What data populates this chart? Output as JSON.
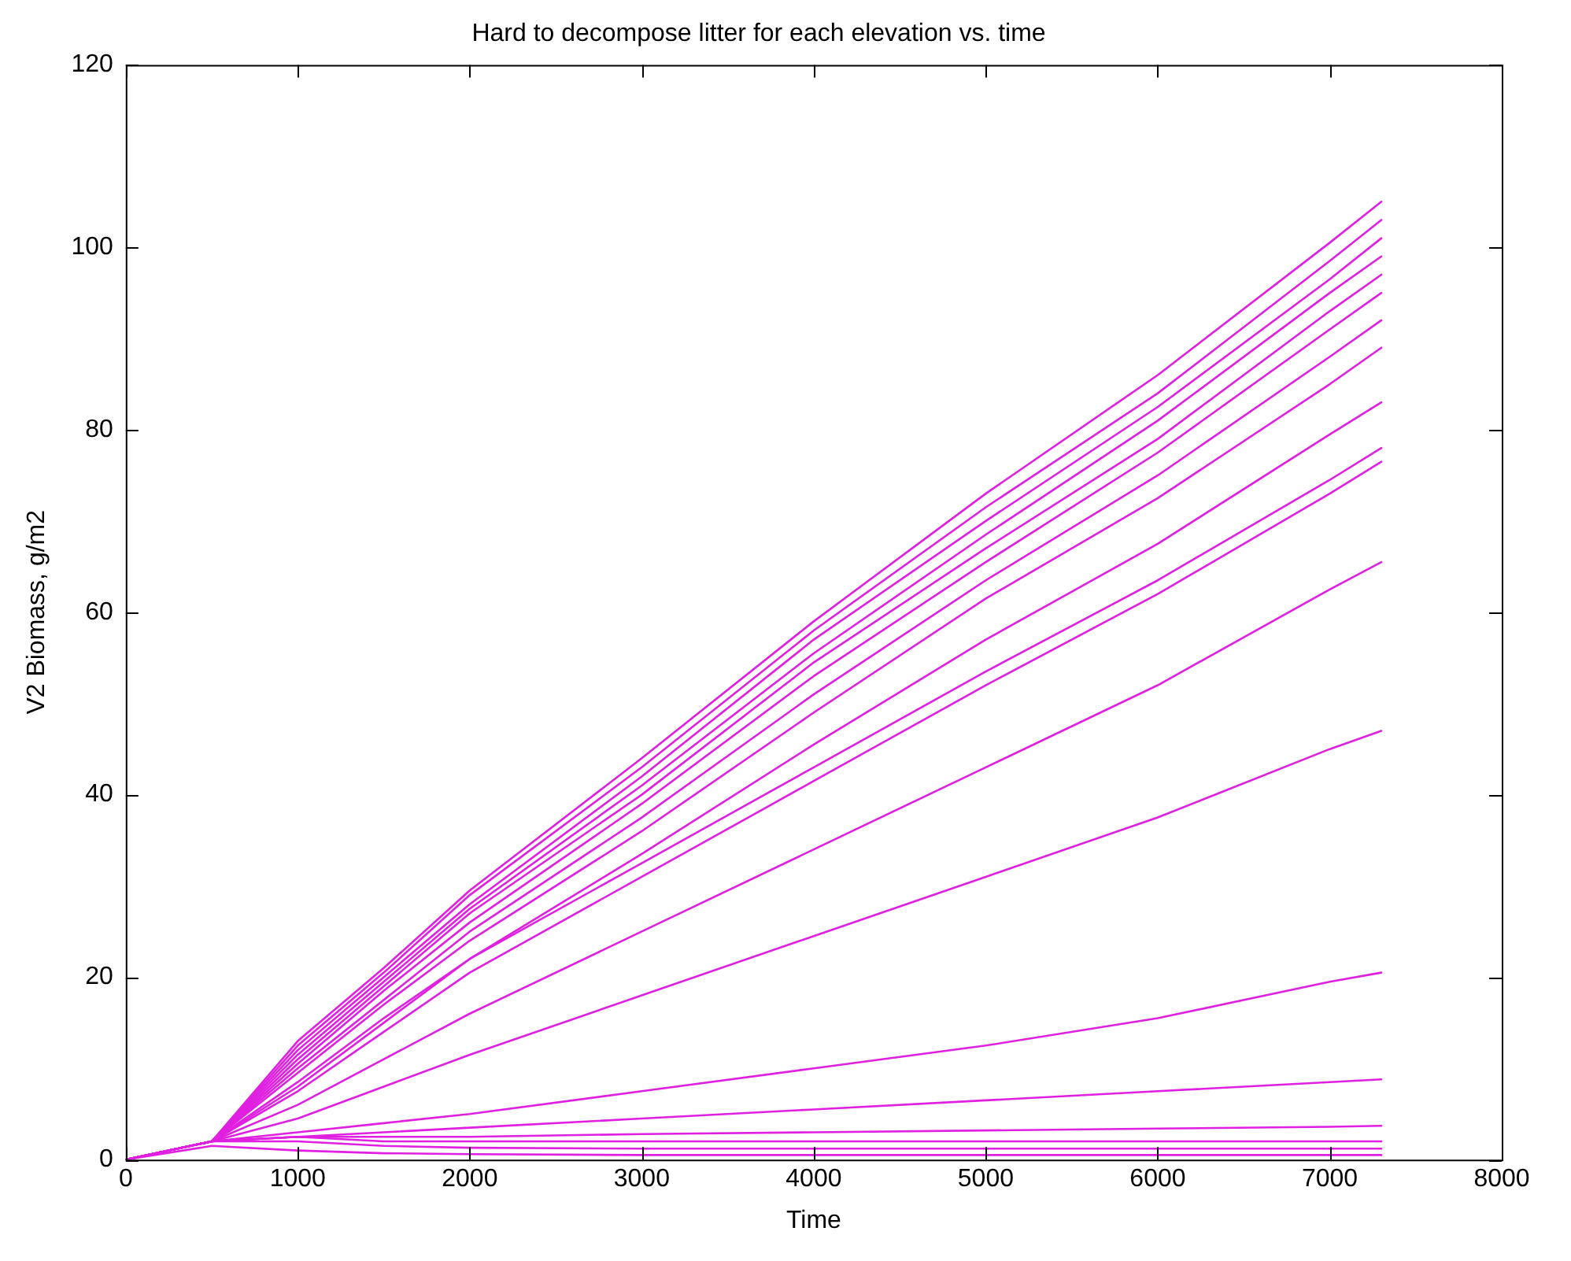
{
  "chart_data": {
    "type": "line",
    "title": "Hard to decompose litter for each elevation vs. time",
    "xlabel": "Time",
    "ylabel": "V2 Biomass, g/m2",
    "x": [
      0,
      500,
      1000,
      1500,
      2000,
      3000,
      4000,
      5000,
      6000,
      7000,
      7300
    ],
    "xlim": [
      0,
      8000
    ],
    "xticks": [
      0,
      1000,
      2000,
      3000,
      4000,
      5000,
      6000,
      7000,
      8000
    ],
    "ylim": [
      0,
      120
    ],
    "yticks": [
      0,
      20,
      40,
      60,
      80,
      100,
      120
    ],
    "grid": false,
    "legend": false,
    "marker": "none",
    "line_style": "solid",
    "series": [
      {
        "color": "#e020e0",
        "values": [
          0,
          2,
          13,
          21,
          29.5,
          44,
          59,
          73,
          86,
          100.5,
          105
        ]
      },
      {
        "color": "#e020e0",
        "values": [
          0,
          2,
          12.5,
          20.5,
          29,
          43,
          58,
          71.5,
          84,
          98.5,
          103
        ]
      },
      {
        "color": "#e020e0",
        "values": [
          0,
          2,
          12,
          20,
          28,
          42,
          57,
          70,
          82.5,
          96.5,
          101
        ]
      },
      {
        "color": "#e020e0",
        "values": [
          0,
          2,
          11.5,
          19.5,
          27.5,
          41,
          55.5,
          68.5,
          81,
          95,
          99
        ]
      },
      {
        "color": "#e020e0",
        "values": [
          0,
          2,
          11,
          19,
          27,
          40,
          54.5,
          67,
          79,
          93,
          97
        ]
      },
      {
        "color": "#e020e0",
        "values": [
          0,
          2,
          10.5,
          18.5,
          26,
          39,
          53,
          65.5,
          77.5,
          91,
          95
        ]
      },
      {
        "color": "#e020e0",
        "values": [
          0,
          2,
          10,
          17.5,
          25,
          37.5,
          51,
          63.5,
          75,
          88,
          92
        ]
      },
      {
        "color": "#e020e0",
        "values": [
          0,
          2,
          9.5,
          17,
          24,
          36,
          49,
          61.5,
          72.5,
          85,
          89
        ]
      },
      {
        "color": "#e020e0",
        "values": [
          0,
          2,
          8.5,
          15.5,
          22,
          33.5,
          45.5,
          57,
          67.5,
          79.5,
          83
        ]
      },
      {
        "color": "#e020e0",
        "values": [
          0,
          2,
          8,
          15,
          22,
          32.5,
          43,
          53.5,
          63.5,
          74.5,
          78
        ]
      },
      {
        "color": "#e020e0",
        "values": [
          0,
          2,
          7.5,
          14,
          20.5,
          31,
          41.5,
          52,
          62,
          73,
          76.5
        ]
      },
      {
        "color": "#e020e0",
        "values": [
          0,
          2,
          6,
          11,
          16,
          25,
          34,
          43,
          52,
          62.5,
          65.5
        ]
      },
      {
        "color": "#e020e0",
        "values": [
          0,
          2,
          4.5,
          8,
          11.5,
          18,
          24.5,
          31,
          37.5,
          45,
          47
        ]
      },
      {
        "color": "#e020e0",
        "values": [
          0,
          2,
          3,
          4,
          5,
          7.5,
          10,
          12.5,
          15.5,
          19.5,
          20.5
        ]
      },
      {
        "color": "#e020e0",
        "values": [
          0,
          2,
          2.5,
          3,
          3.5,
          4.5,
          5.5,
          6.5,
          7.5,
          8.5,
          8.8
        ]
      },
      {
        "color": "#e020e0",
        "values": [
          0,
          2,
          2.5,
          2.5,
          2.5,
          2.8,
          3,
          3.2,
          3.4,
          3.6,
          3.7
        ]
      },
      {
        "color": "#e020e0",
        "values": [
          0,
          2,
          2.5,
          2,
          2,
          2,
          2,
          2,
          2,
          2,
          2
        ]
      },
      {
        "color": "#e020e0",
        "values": [
          0,
          2,
          2,
          1.5,
          1.3,
          1.2,
          1.2,
          1.2,
          1.2,
          1.2,
          1.2
        ]
      },
      {
        "color": "#e020e0",
        "values": [
          0,
          1.5,
          1,
          0.7,
          0.6,
          0.5,
          0.5,
          0.5,
          0.5,
          0.5,
          0.5
        ]
      }
    ]
  }
}
